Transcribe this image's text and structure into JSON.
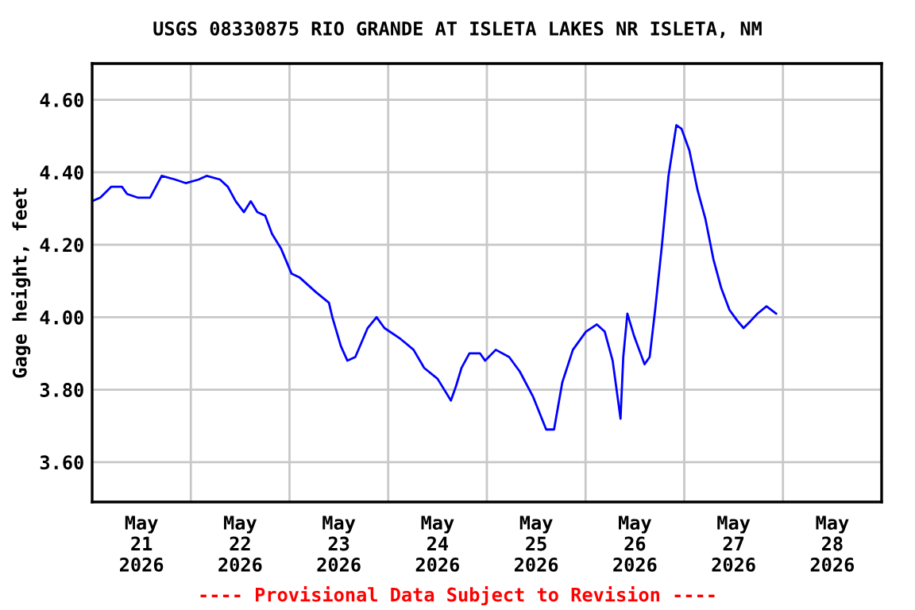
{
  "chart_data": {
    "type": "line",
    "title": "USGS 08330875 RIO GRANDE AT ISLETA LAKES NR ISLETA, NM",
    "ylabel": "Gage height, feet",
    "x": [
      "2026-05-21T00:00",
      "2026-05-21T02:00",
      "2026-05-21T04:40",
      "2026-05-21T07:15",
      "2026-05-21T08:30",
      "2026-05-21T11:05",
      "2026-05-21T14:05",
      "2026-05-21T16:55",
      "2026-05-21T20:10",
      "2026-05-21T22:45",
      "2026-05-22T01:55",
      "2026-05-22T03:50",
      "2026-05-22T07:05",
      "2026-05-22T09:00",
      "2026-05-22T10:55",
      "2026-05-22T12:55",
      "2026-05-22T14:35",
      "2026-05-22T16:10",
      "2026-05-22T18:05",
      "2026-05-22T19:45",
      "2026-05-22T21:55",
      "2026-05-23T00:30",
      "2026-05-23T02:25",
      "2026-05-23T06:20",
      "2026-05-23T09:35",
      "2026-05-23T10:25",
      "2026-05-23T12:30",
      "2026-05-23T14:05",
      "2026-05-23T16:00",
      "2026-05-23T19:00",
      "2026-05-23T21:10",
      "2026-05-23T23:05",
      "2026-05-24T03:00",
      "2026-05-24T06:10",
      "2026-05-24T08:45",
      "2026-05-24T12:00",
      "2026-05-24T15:15",
      "2026-05-24T16:30",
      "2026-05-24T17:50",
      "2026-05-24T19:45",
      "2026-05-24T22:20",
      "2026-05-24T23:35",
      "2026-05-25T02:10",
      "2026-05-25T05:25",
      "2026-05-25T08:00",
      "2026-05-25T11:15",
      "2026-05-25T14:25",
      "2026-05-25T16:20",
      "2026-05-25T18:20",
      "2026-05-25T20:55",
      "2026-05-26T00:05",
      "2026-05-26T02:45",
      "2026-05-26T04:40",
      "2026-05-26T06:35",
      "2026-05-26T08:30",
      "2026-05-26T09:10",
      "2026-05-26T10:10",
      "2026-05-26T11:45",
      "2026-05-26T14:20",
      "2026-05-26T15:35",
      "2026-05-26T16:55",
      "2026-05-26T18:35",
      "2026-05-26T20:10",
      "2026-05-26T22:05",
      "2026-05-26T23:20",
      "2026-05-27T01:15",
      "2026-05-27T03:15",
      "2026-05-27T05:10",
      "2026-05-27T07:05",
      "2026-05-27T09:00",
      "2026-05-27T11:00",
      "2026-05-27T12:55",
      "2026-05-27T14:25",
      "2026-05-27T16:10",
      "2026-05-27T17:50",
      "2026-05-27T20:00",
      "2026-05-27T22:20"
    ],
    "series": [
      {
        "color": "#0000ff",
        "values": [
          4.32,
          4.33,
          4.36,
          4.36,
          4.34,
          4.33,
          4.33,
          4.39,
          4.38,
          4.37,
          4.38,
          4.39,
          4.38,
          4.36,
          4.32,
          4.29,
          4.32,
          4.29,
          4.28,
          4.23,
          4.19,
          4.12,
          4.11,
          4.07,
          4.04,
          4.0,
          3.92,
          3.88,
          3.89,
          3.97,
          4.0,
          3.97,
          3.94,
          3.91,
          3.86,
          3.83,
          3.77,
          3.81,
          3.86,
          3.9,
          3.9,
          3.88,
          3.91,
          3.89,
          3.85,
          3.78,
          3.69,
          3.69,
          3.82,
          3.91,
          3.96,
          3.98,
          3.96,
          3.88,
          3.72,
          3.89,
          4.01,
          3.95,
          3.87,
          3.89,
          4.02,
          4.2,
          4.39,
          4.53,
          4.52,
          4.46,
          4.35,
          4.27,
          4.16,
          4.08,
          4.02,
          3.99,
          3.97,
          3.99,
          4.01,
          4.03,
          4.01
        ]
      }
    ],
    "xlim": [
      "2026-05-21T00:00",
      "2026-05-29T00:00"
    ],
    "xticks": [
      {
        "value": "2026-05-21T00:00",
        "label": null
      },
      {
        "value": "2026-05-21T12:00",
        "label": "May\n21\n2026"
      },
      {
        "value": "2026-05-22T00:00",
        "label": null
      },
      {
        "value": "2026-05-22T12:00",
        "label": "May\n22\n2026"
      },
      {
        "value": "2026-05-23T00:00",
        "label": null
      },
      {
        "value": "2026-05-23T12:00",
        "label": "May\n23\n2026"
      },
      {
        "value": "2026-05-24T00:00",
        "label": null
      },
      {
        "value": "2026-05-24T12:00",
        "label": "May\n24\n2026"
      },
      {
        "value": "2026-05-25T00:00",
        "label": null
      },
      {
        "value": "2026-05-25T12:00",
        "label": "May\n25\n2026"
      },
      {
        "value": "2026-05-26T00:00",
        "label": null
      },
      {
        "value": "2026-05-26T12:00",
        "label": "May\n26\n2026"
      },
      {
        "value": "2026-05-27T00:00",
        "label": null
      },
      {
        "value": "2026-05-27T12:00",
        "label": "May\n27\n2026"
      },
      {
        "value": "2026-05-28T00:00",
        "label": null
      },
      {
        "value": "2026-05-28T12:00",
        "label": "May\n28\n2026"
      },
      {
        "value": "2026-05-29T00:00",
        "label": null
      }
    ],
    "ylim": [
      3.49,
      4.7
    ],
    "yticks": [
      {
        "value": 3.6,
        "label": "3.60"
      },
      {
        "value": 3.8,
        "label": "3.80"
      },
      {
        "value": 4.0,
        "label": "4.00"
      },
      {
        "value": 4.2,
        "label": "4.20"
      },
      {
        "value": 4.4,
        "label": "4.40"
      },
      {
        "value": 4.6,
        "label": "4.60"
      }
    ],
    "grid": true,
    "line_style": "solid",
    "marker": "none",
    "annotations": [
      "---- Provisional Data Subject to Revision ----"
    ]
  }
}
